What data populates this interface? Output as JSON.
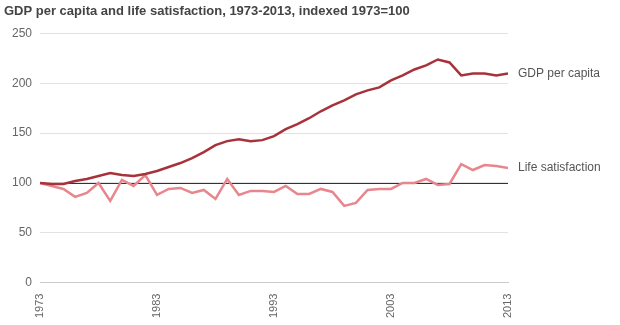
{
  "chart_data": {
    "type": "line",
    "title": "GDP per capita and life satisfaction, 1973-2013, indexed 1973=100",
    "x": [
      1973,
      1974,
      1975,
      1976,
      1977,
      1978,
      1979,
      1980,
      1981,
      1982,
      1983,
      1984,
      1985,
      1986,
      1987,
      1988,
      1989,
      1990,
      1991,
      1992,
      1993,
      1994,
      1995,
      1996,
      1997,
      1998,
      1999,
      2000,
      2001,
      2002,
      2003,
      2004,
      2005,
      2006,
      2007,
      2008,
      2009,
      2010,
      2011,
      2012,
      2013
    ],
    "series": [
      {
        "name": "GDP per capita",
        "color": "#a8323a",
        "values": [
          100,
          99,
          99,
          102,
          104,
          107,
          110,
          108,
          107,
          109,
          112,
          116,
          120,
          125,
          131,
          138,
          142,
          144,
          142,
          143,
          147,
          154,
          159,
          165,
          172,
          178,
          183,
          189,
          193,
          196,
          203,
          208,
          214,
          218,
          224,
          221,
          208,
          210,
          210,
          208,
          210
        ]
      },
      {
        "name": "Life satisfaction",
        "color": "#e8868e",
        "values": [
          100,
          97,
          94,
          86,
          90,
          100,
          82,
          103,
          97,
          108,
          88,
          94,
          95,
          90,
          93,
          84,
          104,
          88,
          92,
          92,
          91,
          97,
          89,
          89,
          94,
          91,
          77,
          80,
          93,
          94,
          94,
          100,
          100,
          104,
          98,
          99,
          119,
          113,
          118,
          117,
          115
        ]
      }
    ],
    "xlim": [
      1973,
      2013
    ],
    "xticks": [
      1973,
      1983,
      1993,
      2003,
      2013
    ],
    "ylim": [
      0,
      250
    ],
    "yticks": [
      0,
      50,
      100,
      150,
      200,
      250
    ],
    "reference_line": 100,
    "grid": true,
    "legend": "none"
  }
}
